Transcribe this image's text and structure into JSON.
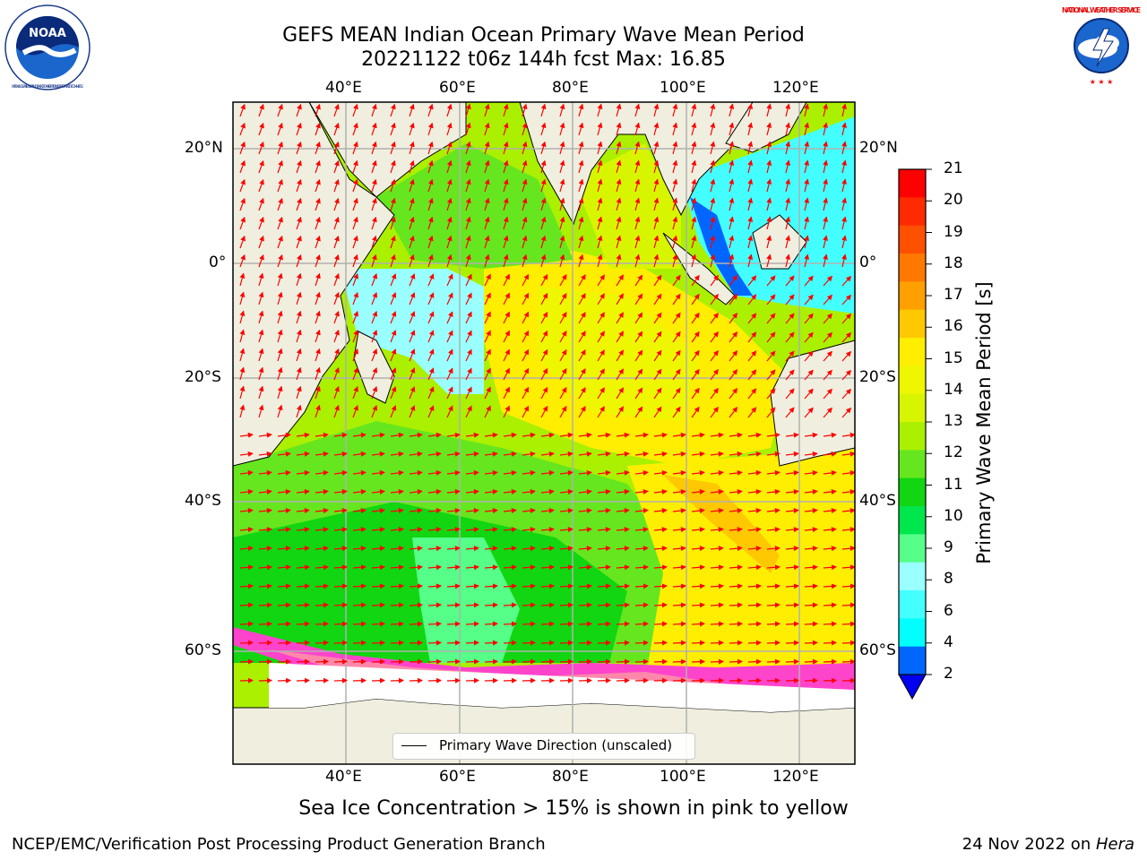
{
  "title": {
    "line1": "GEFS MEAN Indian Ocean Primary Wave Mean Period",
    "line2": "20221122 t06z 144h fcst   Max: 16.85"
  },
  "logos": {
    "left": {
      "text": "NOAA",
      "ring_text": "NATIONAL OCEANIC AND ATMOSPHERIC ADMINISTRATION · U.S. DEPARTMENT OF COMMERCE",
      "icon": "noaa-logo"
    },
    "right": {
      "ring_text": "NATIONAL WEATHER SERVICE",
      "icon": "nws-logo"
    }
  },
  "map": {
    "lon_range": [
      20,
      130
    ],
    "lat_range": [
      -75,
      27
    ],
    "lon_ticks": [
      "40°E",
      "60°E",
      "80°E",
      "100°E",
      "120°E"
    ],
    "lat_ticks": [
      "20°N",
      "0°",
      "20°S",
      "40°S",
      "60°S"
    ],
    "grid": true,
    "land_color": "#f0efdf",
    "vector_color": "#ff0000",
    "legend": {
      "label": "Primary Wave Direction (unscaled)",
      "placement": "lower-center"
    }
  },
  "colorbar": {
    "title": "Primary Wave Mean Period [s]",
    "labels": [
      "21",
      "20",
      "19",
      "18",
      "17",
      "16",
      "15",
      "14",
      "13",
      "12",
      "11",
      "10",
      "9",
      "8",
      "6",
      "4",
      "2"
    ],
    "colors": [
      "#ff0000",
      "#ff2a00",
      "#ff5000",
      "#ff7800",
      "#ffa000",
      "#ffc800",
      "#ffee00",
      "#eef700",
      "#d8f500",
      "#aaf000",
      "#66e61e",
      "#11d611",
      "#00e64d",
      "#55ff88",
      "#99ffff",
      "#44ffff",
      "#00ffff",
      "#0066ff"
    ],
    "extend_color": "#0000ee"
  },
  "bottom_caption": "Sea Ice Concentration > 15% is shown in pink to yellow",
  "footer": {
    "left": "NCEP/EMC/Verification Post Processing Product Generation Branch",
    "right_date": "24 Nov 2022 on ",
    "right_system": "Hera"
  }
}
